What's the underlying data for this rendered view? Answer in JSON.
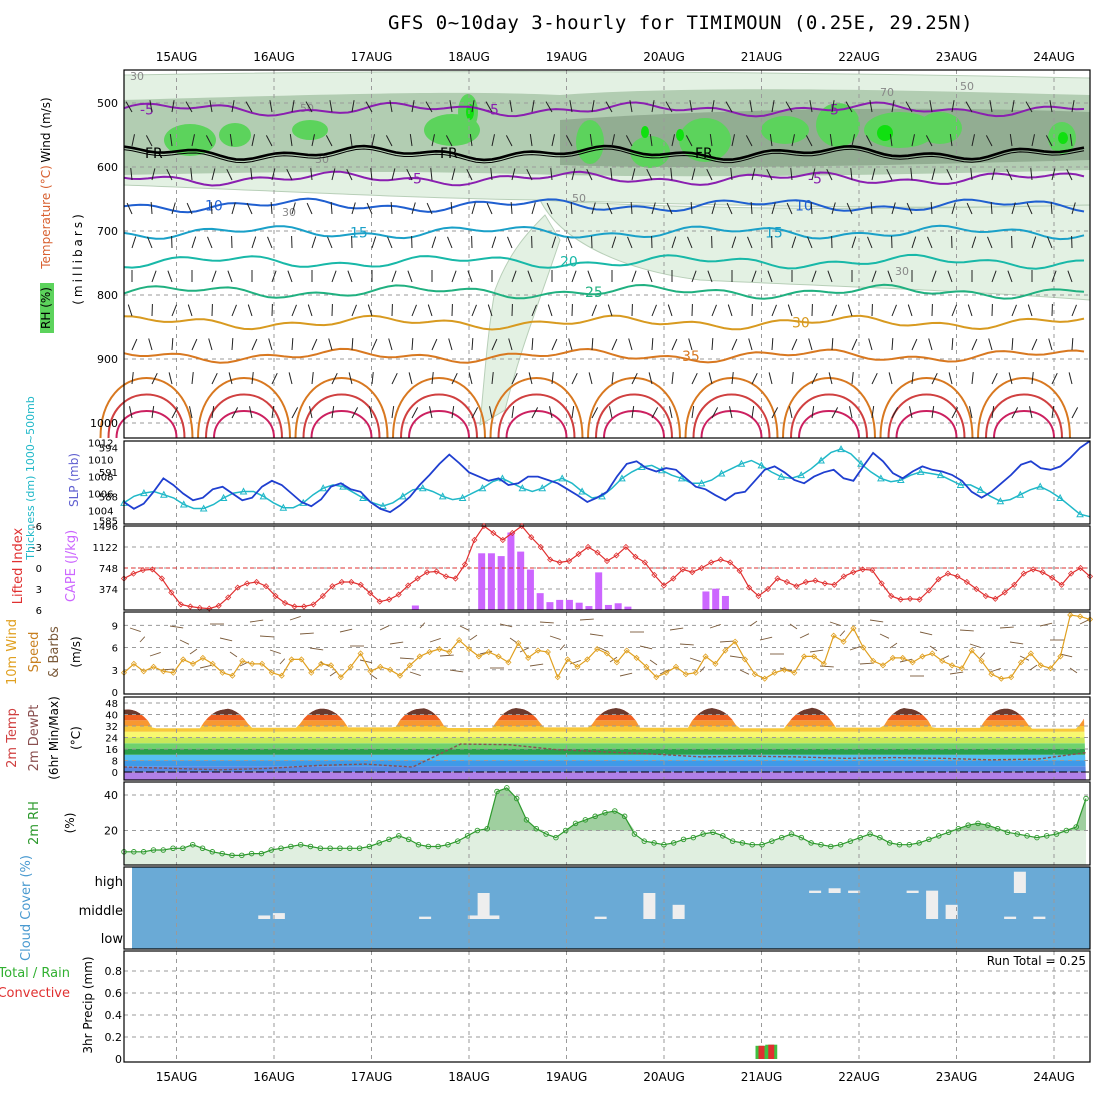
{
  "title": "GFS 0~10day 3-hourly for TIMIMOUN (0.25E, 29.25N)",
  "dates": [
    "15AUG",
    "16AUG",
    "17AUG",
    "18AUG",
    "19AUG",
    "20AUG",
    "21AUG",
    "22AUG",
    "23AUG",
    "24AUG"
  ],
  "colors": {
    "frame": "#000000",
    "grid": "#9a9a9a",
    "rh_light": "#e3f1e3",
    "rh_mid": "#a9c7a9",
    "rh_dark": "#8aa58a",
    "rh_green": "#5cd35c",
    "rh_bright": "#10e010",
    "cape": "#cc66ff",
    "lifted_index": "#e03030",
    "slp": "#1f3fd0",
    "thickness": "#20b8c8",
    "wind10m": "#e0a020",
    "rh2m": "#2e9a2e",
    "rh2m_fill": "#e0efe0",
    "cloud_bg": "#6aaad6",
    "cloud_bar": "#eeeeee"
  },
  "chart_data": [
    {
      "panel": "upper-air",
      "type": "contour",
      "ylabel_parts": [
        "Wind (m/s)",
        "Temperature (°C)",
        "RH (%)",
        "(millibars)"
      ],
      "y_ticks": [
        500,
        600,
        700,
        800,
        900,
        1000
      ],
      "temperature_contours": [
        {
          "label": "-5",
          "pressure": 510,
          "color": "#8a1fb0"
        },
        {
          "label": "FR",
          "pressure": 578,
          "color": "#000000"
        },
        {
          "label": "-5",
          "pressure": 618,
          "color": "#8a1fb0"
        },
        {
          "label": "10",
          "pressure": 660,
          "color": "#1f5fd0"
        },
        {
          "label": "15",
          "pressure": 702,
          "color": "#1aa0c8"
        },
        {
          "label": "20",
          "pressure": 748,
          "color": "#18b8a8"
        },
        {
          "label": "25",
          "pressure": 795,
          "color": "#20b080"
        },
        {
          "label": "30",
          "pressure": 843,
          "color": "#d89a20"
        },
        {
          "label": "35",
          "pressure": 895,
          "color": "#d87820"
        }
      ],
      "rh_labels": [
        "30",
        "50",
        "70"
      ]
    },
    {
      "panel": "slp-thickness",
      "type": "line",
      "ylabel_left": "Thickness (dm) 1000~500mb",
      "ylabel_right": "SLP (mb)",
      "thickness_ticks": [
        585,
        588,
        591,
        594
      ],
      "slp_ticks": [
        1004,
        1006,
        1008,
        1010,
        1012
      ],
      "series": [
        {
          "name": "SLP (mb)",
          "values": [
            1005,
            1004.2,
            1004.8,
            1006.2,
            1007.8,
            1007,
            1006,
            1005.2,
            1005.5,
            1006.5,
            1006.8,
            1006,
            1005.2,
            1005.5,
            1006.8,
            1007.5,
            1007,
            1006,
            1005,
            1004.5,
            1005.3,
            1006.8,
            1007.2,
            1006.5,
            1006.2,
            1005,
            1004.2,
            1003.8,
            1004.6,
            1005.6,
            1007,
            1008.2,
            1009.5,
            1010.6,
            1009.6,
            1008.5,
            1008,
            1007.5,
            1007.8,
            1007,
            1007.2,
            1008,
            1008,
            1007.6,
            1007.2,
            1006.5,
            1005.8,
            1005,
            1005.5,
            1006.2,
            1008,
            1009.5,
            1009.8,
            1009,
            1008.6,
            1009,
            1008.8,
            1007.8,
            1006.8,
            1006.5,
            1005.8,
            1005.2,
            1006,
            1006.2,
            1007.5,
            1008.8,
            1009.2,
            1008.5,
            1007.6,
            1007.2,
            1008,
            1008.5,
            1008.8,
            1007.8,
            1007.5,
            1009.2,
            1010.8,
            1009.8,
            1008.4,
            1007.8,
            1008.6,
            1009.2,
            1008.8,
            1008.6,
            1008.2,
            1007.5,
            1006.2,
            1005.5,
            1006.2,
            1007.2,
            1008.2,
            1009.4,
            1009.8,
            1009,
            1008.8,
            1009.2,
            1010.2,
            1011.4,
            1012.2
          ]
        },
        {
          "name": "Thickness (dm)",
          "values": [
            587.2,
            588,
            588.4,
            588.6,
            588.2,
            587.8,
            587,
            586.5,
            586.5,
            587,
            587.8,
            588.4,
            588.6,
            588.6,
            588,
            587.2,
            586.6,
            586.6,
            587.2,
            588.2,
            589,
            589.4,
            589.2,
            588.5,
            587.8,
            587.2,
            586.8,
            587.2,
            588,
            588.8,
            589,
            588.6,
            588,
            587.6,
            587.8,
            588.4,
            589,
            589.8,
            590.2,
            589.6,
            589,
            588.6,
            589,
            589.8,
            590.2,
            589.6,
            588.6,
            587.8,
            588,
            589,
            590.2,
            591,
            591.6,
            591.8,
            591.2,
            590.6,
            590.2,
            589.6,
            589.6,
            590,
            590.8,
            591.4,
            592,
            592.4,
            591.8,
            591,
            590.4,
            590.2,
            590.6,
            591.4,
            592.4,
            593.4,
            593.8,
            593.2,
            592,
            591,
            590.2,
            589.8,
            590,
            590.6,
            591,
            590.8,
            590.6,
            590,
            589.4,
            589.4,
            588.8,
            588,
            587.4,
            587.6,
            588.2,
            588.8,
            589.2,
            588.6,
            587.8,
            586.8,
            585.8,
            585.5
          ]
        }
      ]
    },
    {
      "panel": "lifted-index-cape",
      "type": "bar+line",
      "ylabel_left": "Lifted Index",
      "ylabel_right": "CAPE (J/kg)",
      "li_ticks": [
        "6",
        "3",
        "0",
        "-3",
        "-6"
      ],
      "cape_ticks": [
        374,
        748,
        1122,
        1496
      ],
      "series": [
        {
          "name": "Lifted Index",
          "values": [
            1.5,
            0.8,
            0.3,
            0.2,
            1.5,
            3.5,
            5.2,
            5.5,
            5.7,
            5.8,
            5.4,
            4.2,
            2.8,
            2.2,
            2.0,
            2.6,
            4.0,
            5.0,
            5.5,
            5.5,
            5.2,
            4.0,
            2.6,
            2.0,
            2.0,
            2.4,
            3.6,
            4.8,
            4.5,
            3.8,
            2.5,
            1.5,
            0.6,
            0.5,
            1.2,
            1.5,
            -0.5,
            -4.0,
            -6.0,
            -5.0,
            -4.0,
            -5.0,
            -6.2,
            -4.4,
            -3.0,
            -1.2,
            -0.8,
            -1.0,
            -2.0,
            -3.0,
            -2.2,
            -1.0,
            -1.8,
            -3.0,
            -1.6,
            -0.8,
            1.0,
            2.5,
            1.5,
            0.2,
            0.6,
            0.0,
            -0.8,
            -1.2,
            -0.8,
            0.4,
            2.8,
            4.0,
            3.0,
            1.5,
            2.0,
            2.6,
            2.0,
            1.8,
            2.2,
            2.4,
            1.2,
            0.6,
            0.2,
            0.3,
            2.2,
            4.0,
            4.5,
            4.4,
            4.5,
            3.2,
            1.6,
            0.8,
            1.2,
            2.0,
            3.0,
            4.0,
            4.4,
            3.5,
            2.4,
            0.8,
            0.2,
            0.6,
            1.4,
            2.4,
            0.8,
            0.0,
            1.2
          ]
        },
        {
          "name": "CAPE (J/kg)",
          "values": [
            0,
            0,
            0,
            0,
            0,
            0,
            0,
            0,
            0,
            0,
            0,
            0,
            0,
            0,
            0,
            0,
            0,
            0,
            0,
            0,
            0,
            0,
            0,
            0,
            0,
            0,
            0,
            0,
            0,
            0,
            0,
            0,
            0,
            0,
            0,
            0,
            0,
            0,
            0,
            0,
            0,
            0,
            0,
            0,
            0,
            0,
            0,
            0,
            0,
            0,
            0,
            0,
            0,
            0,
            0,
            0,
            0,
            0,
            0,
            0,
            0,
            0,
            0,
            0,
            0,
            0,
            0,
            0,
            0,
            0,
            0,
            0,
            0,
            0,
            0,
            0,
            0,
            0,
            0,
            0,
            0,
            0,
            0,
            0,
            0,
            0,
            0,
            0,
            0,
            0,
            0,
            0,
            0,
            0,
            0,
            0,
            0,
            0,
            0
          ]
        }
      ],
      "cape_bars": [
        {
          "day": 2.45,
          "value": 80
        },
        {
          "day": 3.13,
          "value": 1010
        },
        {
          "day": 3.23,
          "value": 1010
        },
        {
          "day": 3.33,
          "value": 960
        },
        {
          "day": 3.43,
          "value": 1380
        },
        {
          "day": 3.53,
          "value": 1040
        },
        {
          "day": 3.63,
          "value": 720
        },
        {
          "day": 3.73,
          "value": 300
        },
        {
          "day": 3.83,
          "value": 140
        },
        {
          "day": 3.93,
          "value": 180
        },
        {
          "day": 4.03,
          "value": 180
        },
        {
          "day": 4.13,
          "value": 130
        },
        {
          "day": 4.23,
          "value": 70
        },
        {
          "day": 4.33,
          "value": 670
        },
        {
          "day": 4.43,
          "value": 90
        },
        {
          "day": 4.53,
          "value": 120
        },
        {
          "day": 4.63,
          "value": 60
        },
        {
          "day": 5.43,
          "value": 330
        },
        {
          "day": 5.53,
          "value": 380
        },
        {
          "day": 5.63,
          "value": 250
        }
      ]
    },
    {
      "panel": "10m-wind",
      "type": "line",
      "ylabel_parts": [
        "10m Wind",
        "Speed",
        "& Barbs",
        "(m/s)"
      ],
      "y_ticks": [
        0,
        3,
        6,
        9
      ],
      "series": [
        {
          "name": "10m Wind Speed (m/s)",
          "values": [
            2.6,
            3.8,
            2.8,
            3.4,
            2.8,
            2.6,
            4.4,
            3.8,
            4.6,
            3.8,
            2.6,
            2.2,
            4.2,
            3.8,
            3.8,
            2.6,
            2.2,
            4.4,
            4.4,
            2.6,
            3.8,
            3.6,
            2.0,
            3.4,
            5.2,
            2.8,
            3.4,
            3.0,
            2.2,
            3.6,
            4.8,
            5.4,
            5.8,
            5.4,
            7.0,
            5.8,
            4.8,
            5.4,
            4.8,
            4.0,
            6.6,
            4.6,
            5.6,
            5.4,
            2.0,
            4.4,
            3.4,
            4.4,
            5.8,
            5.2,
            4.0,
            5.6,
            4.6,
            3.4,
            2.0,
            2.6,
            3.4,
            2.4,
            2.6,
            4.8,
            3.8,
            5.6,
            6.8,
            4.4,
            2.4,
            1.8,
            2.6,
            3.0,
            2.6,
            4.8,
            4.8,
            3.8,
            7.6,
            6.8,
            8.6,
            6.0,
            4.2,
            3.6,
            4.6,
            4.6,
            4.0,
            4.8,
            5.2,
            4.2,
            3.6,
            3.2,
            5.6,
            4.2,
            2.4,
            1.8,
            2.0,
            4.0,
            5.2,
            3.6,
            3.2,
            4.8,
            10.4,
            10.2,
            9.8
          ]
        }
      ]
    },
    {
      "panel": "2m-temp",
      "type": "area",
      "ylabel_parts": [
        "2m Temp",
        "2m DewPt",
        "(6hr Min/Max)",
        "(°C)"
      ],
      "y_ticks": [
        0,
        8,
        16,
        24,
        32,
        40,
        48
      ],
      "series": [
        {
          "name": "2m Temp max (°C)",
          "values": [
            43.5,
            44.2,
            44.0,
            44.6,
            44.2,
            44.5,
            44.0,
            44.8,
            44.0,
            44.2
          ]
        },
        {
          "name": "2m Temp min (°C)",
          "values": [
            30.5,
            30.8,
            31.0,
            30.6,
            31.0,
            30.8,
            30.5,
            30.9,
            30.7,
            30.2
          ]
        },
        {
          "name": "2m DewPt (°C)",
          "values": [
            3.5,
            2.5,
            1.5,
            2.5,
            4.5,
            5.5,
            3.5,
            19.5,
            19.0,
            15.5,
            14.0,
            12.5,
            10.5,
            11.0,
            10.5,
            9.5,
            10.0,
            9.5,
            8.5,
            9.0,
            13.5
          ]
        }
      ]
    },
    {
      "panel": "2m-rh",
      "type": "area",
      "ylabel_parts": [
        "2m RH",
        "(%)"
      ],
      "y_ticks": [
        20,
        40
      ],
      "series": [
        {
          "name": "2m RH (%)",
          "values": [
            8,
            8,
            8,
            9,
            9,
            10,
            10,
            12,
            10,
            8,
            7,
            6,
            6,
            7,
            7,
            9,
            10,
            11,
            12,
            11,
            10,
            10,
            10,
            10,
            10,
            11,
            13,
            15,
            17,
            15,
            12,
            11,
            11,
            12,
            14,
            17,
            20,
            21,
            42,
            44,
            38,
            26,
            21,
            18,
            16,
            20,
            24,
            26,
            28,
            30,
            31,
            28,
            18,
            14,
            13,
            12,
            13,
            15,
            16,
            18,
            19,
            17,
            14,
            13,
            12,
            12,
            14,
            16,
            18,
            16,
            13,
            12,
            11,
            12,
            14,
            16,
            18,
            16,
            13,
            12,
            12,
            13,
            15,
            17,
            19,
            21,
            23,
            24,
            23,
            21,
            19,
            18,
            17,
            16,
            17,
            18,
            20,
            22,
            38
          ]
        }
      ]
    },
    {
      "panel": "cloud-cover",
      "type": "bar",
      "ylabel": "Cloud Cover (%)",
      "levels": [
        "high",
        "middle",
        "low"
      ],
      "bars": [
        {
          "day": 0.9,
          "level": "middle",
          "value": 3
        },
        {
          "day": 1.05,
          "level": "middle",
          "value": 5
        },
        {
          "day": 2.55,
          "level": "middle",
          "value": 2
        },
        {
          "day": 3.05,
          "level": "middle",
          "value": 3
        },
        {
          "day": 3.15,
          "level": "middle",
          "value": 22
        },
        {
          "day": 3.25,
          "level": "middle",
          "value": 3
        },
        {
          "day": 4.35,
          "level": "middle",
          "value": 2
        },
        {
          "day": 4.85,
          "level": "middle",
          "value": 22
        },
        {
          "day": 5.15,
          "level": "middle",
          "value": 12
        },
        {
          "day": 6.55,
          "level": "high",
          "value": 2
        },
        {
          "day": 6.75,
          "level": "high",
          "value": 4
        },
        {
          "day": 6.95,
          "level": "high",
          "value": 2
        },
        {
          "day": 7.55,
          "level": "high",
          "value": 2
        },
        {
          "day": 7.75,
          "level": "high",
          "value": 2
        },
        {
          "day": 7.75,
          "level": "middle",
          "value": 22
        },
        {
          "day": 7.95,
          "level": "middle",
          "value": 12
        },
        {
          "day": 8.55,
          "level": "middle",
          "value": 2
        },
        {
          "day": 8.65,
          "level": "high",
          "value": 18
        },
        {
          "day": 8.85,
          "level": "middle",
          "value": 2
        },
        {
          "day": 9.55,
          "level": "middle",
          "value": 20
        }
      ]
    },
    {
      "panel": "precip",
      "type": "bar",
      "ylabel_parts": [
        "Total / Rain",
        "Convective",
        "3hr Precip (mm)"
      ],
      "y_ticks": [
        0,
        0.2,
        0.4,
        0.6,
        0.8
      ],
      "run_total_label": "Run Total = 0.25",
      "bars": [
        {
          "day": 6.0,
          "total": 0.12,
          "convective": 0.12
        },
        {
          "day": 6.1,
          "total": 0.13,
          "convective": 0.13
        }
      ]
    }
  ]
}
